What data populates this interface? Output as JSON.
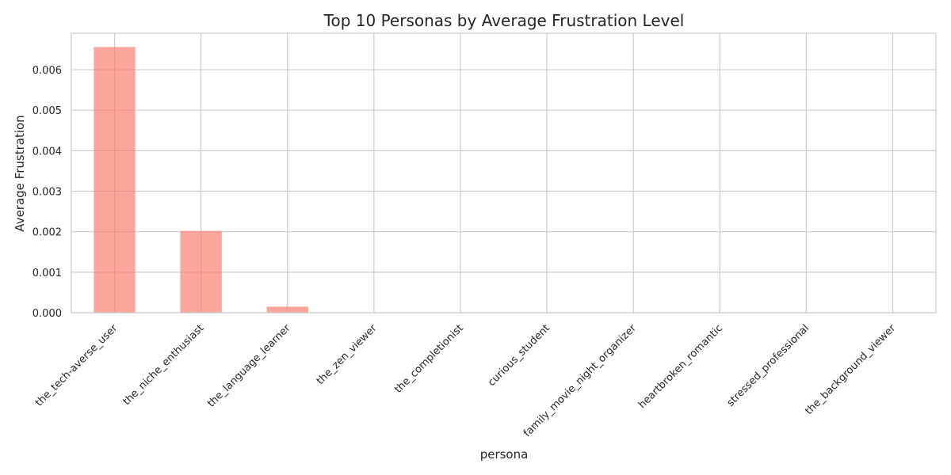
{
  "chart_data": {
    "type": "bar",
    "title": "Top 10 Personas by Average Frustration Level",
    "xlabel": "persona",
    "ylabel": "Average Frustration",
    "categories": [
      "the_tech-averse_user",
      "the_niche_enthusiast",
      "the_language_learner",
      "the_zen_viewer",
      "the_completionist",
      "curious_student",
      "family_movie_night_organizer",
      "heartbroken_romantic",
      "stressed_professional",
      "the_background_viewer"
    ],
    "values": [
      0.00656,
      0.00202,
      0.00015,
      0,
      0,
      0,
      0,
      0,
      0,
      0
    ],
    "ylim": [
      0,
      0.0069
    ],
    "yticks": [
      0.0,
      0.001,
      0.002,
      0.003,
      0.004,
      0.005,
      0.006
    ],
    "ytick_labels": [
      "0.000",
      "0.001",
      "0.002",
      "0.003",
      "0.004",
      "0.005",
      "0.006"
    ],
    "bar_color": "#fa8072",
    "grid": true,
    "legend": "none"
  }
}
